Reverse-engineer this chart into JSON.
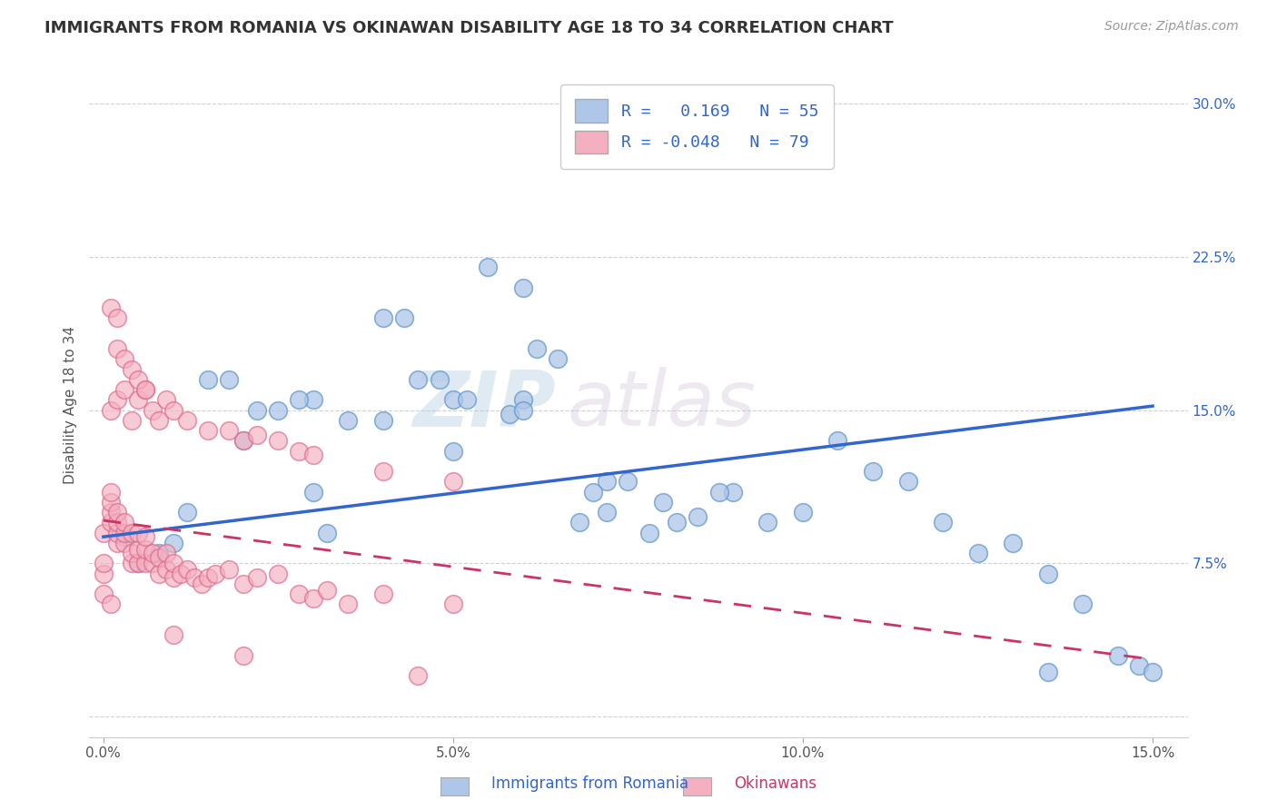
{
  "title": "IMMIGRANTS FROM ROMANIA VS OKINAWAN DISABILITY AGE 18 TO 34 CORRELATION CHART",
  "source": "Source: ZipAtlas.com",
  "ylabel": "Disability Age 18 to 34",
  "xlim": [
    -0.002,
    0.155
  ],
  "ylim": [
    -0.01,
    0.315
  ],
  "xticks": [
    0.0,
    0.05,
    0.1,
    0.15
  ],
  "xtick_labels": [
    "0.0%",
    "5.0%",
    "10.0%",
    "15.0%"
  ],
  "yticks": [
    0.0,
    0.075,
    0.15,
    0.225,
    0.3
  ],
  "ytick_labels": [
    "",
    "7.5%",
    "15.0%",
    "22.5%",
    "30.0%"
  ],
  "series1_label": "Immigrants from Romania",
  "series1_r": "0.169",
  "series1_n": "55",
  "series1_color": "#aec6e8",
  "series1_edge": "#6699cc",
  "series2_label": "Okinawans",
  "series2_r": "-0.048",
  "series2_n": "79",
  "series2_color": "#f4b0c0",
  "series2_edge": "#dd6688",
  "trend1_color": "#3366cc",
  "trend2_color": "#cc3366",
  "background_color": "#ffffff",
  "grid_color": "#cccccc",
  "title_color": "#333333",
  "series1_x": [
    0.018,
    0.03,
    0.022,
    0.032,
    0.04,
    0.05,
    0.048,
    0.055,
    0.06,
    0.06,
    0.068,
    0.052,
    0.03,
    0.04,
    0.012,
    0.065,
    0.062,
    0.072,
    0.078,
    0.085,
    0.09,
    0.095,
    0.1,
    0.105,
    0.11,
    0.115,
    0.12,
    0.125,
    0.13,
    0.135,
    0.14,
    0.145,
    0.148,
    0.072,
    0.08,
    0.088,
    0.058,
    0.07,
    0.075,
    0.082,
    0.02,
    0.025,
    0.035,
    0.043,
    0.045,
    0.015,
    0.028,
    0.005,
    0.008,
    0.01,
    0.05,
    0.06,
    0.135,
    0.003,
    0.15
  ],
  "series1_y": [
    0.165,
    0.155,
    0.15,
    0.09,
    0.145,
    0.155,
    0.165,
    0.22,
    0.155,
    0.21,
    0.095,
    0.155,
    0.11,
    0.195,
    0.1,
    0.175,
    0.18,
    0.1,
    0.09,
    0.098,
    0.11,
    0.095,
    0.1,
    0.135,
    0.12,
    0.115,
    0.095,
    0.08,
    0.085,
    0.07,
    0.055,
    0.03,
    0.025,
    0.115,
    0.105,
    0.11,
    0.148,
    0.11,
    0.115,
    0.095,
    0.135,
    0.15,
    0.145,
    0.195,
    0.165,
    0.165,
    0.155,
    0.075,
    0.08,
    0.085,
    0.13,
    0.15,
    0.022,
    0.088,
    0.022
  ],
  "series2_x": [
    0.0,
    0.0,
    0.0,
    0.001,
    0.001,
    0.001,
    0.001,
    0.002,
    0.002,
    0.002,
    0.002,
    0.003,
    0.003,
    0.003,
    0.004,
    0.004,
    0.004,
    0.005,
    0.005,
    0.005,
    0.006,
    0.006,
    0.006,
    0.007,
    0.007,
    0.008,
    0.008,
    0.009,
    0.009,
    0.01,
    0.01,
    0.011,
    0.012,
    0.013,
    0.014,
    0.015,
    0.016,
    0.018,
    0.02,
    0.022,
    0.025,
    0.028,
    0.03,
    0.032,
    0.035,
    0.04,
    0.05,
    0.001,
    0.002,
    0.003,
    0.004,
    0.005,
    0.006,
    0.007,
    0.008,
    0.009,
    0.01,
    0.012,
    0.015,
    0.018,
    0.02,
    0.022,
    0.025,
    0.028,
    0.03,
    0.04,
    0.05,
    0.002,
    0.003,
    0.004,
    0.005,
    0.006,
    0.001,
    0.002,
    0.01,
    0.045,
    0.0,
    0.001,
    0.02
  ],
  "series2_y": [
    0.07,
    0.075,
    0.09,
    0.095,
    0.1,
    0.105,
    0.11,
    0.085,
    0.09,
    0.095,
    0.1,
    0.085,
    0.09,
    0.095,
    0.075,
    0.08,
    0.09,
    0.075,
    0.082,
    0.09,
    0.075,
    0.082,
    0.088,
    0.075,
    0.08,
    0.07,
    0.078,
    0.072,
    0.08,
    0.068,
    0.075,
    0.07,
    0.072,
    0.068,
    0.065,
    0.068,
    0.07,
    0.072,
    0.065,
    0.068,
    0.07,
    0.06,
    0.058,
    0.062,
    0.055,
    0.06,
    0.055,
    0.15,
    0.155,
    0.16,
    0.145,
    0.155,
    0.16,
    0.15,
    0.145,
    0.155,
    0.15,
    0.145,
    0.14,
    0.14,
    0.135,
    0.138,
    0.135,
    0.13,
    0.128,
    0.12,
    0.115,
    0.18,
    0.175,
    0.17,
    0.165,
    0.16,
    0.2,
    0.195,
    0.04,
    0.02,
    0.06,
    0.055,
    0.03
  ],
  "trend1_x": [
    0.0,
    0.15
  ],
  "trend1_y": [
    0.088,
    0.152
  ],
  "trend2_x": [
    0.0,
    0.15
  ],
  "trend2_y": [
    0.096,
    0.028
  ]
}
